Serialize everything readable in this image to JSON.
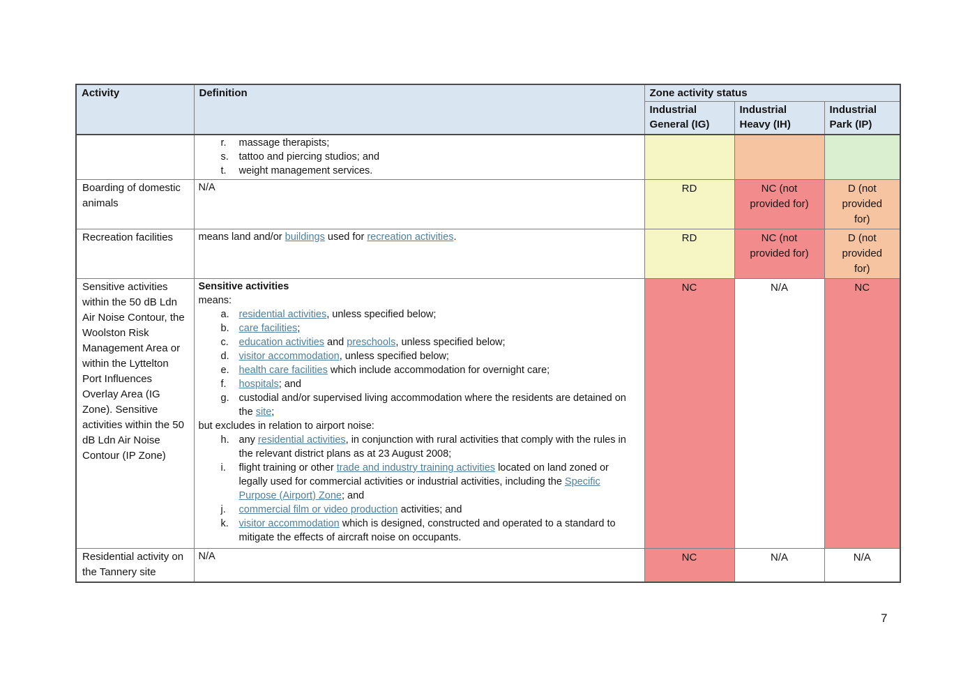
{
  "page_number": "7",
  "colors": {
    "header_bg": "#d9e6f2",
    "link": "#4e7f9e",
    "status": {
      "yellow": "#f6f6c5",
      "peach": "#f7c4a1",
      "green": "#d9efcf",
      "red": "#f28b8b",
      "white": "#ffffff"
    }
  },
  "table": {
    "header": {
      "activity": "Activity",
      "definition": "Definition",
      "zone_group": "Zone activity status",
      "zones": [
        {
          "label": "Industrial General (IG)"
        },
        {
          "label": "Industrial Heavy (IH)"
        },
        {
          "label": "Industrial Park (IP)"
        }
      ]
    },
    "rows": [
      {
        "activity": "",
        "definition": {
          "blocks": [
            {
              "type": "li",
              "marker": "r.",
              "segments": [
                {
                  "t": "massage therapists;"
                }
              ]
            },
            {
              "type": "li",
              "marker": "s.",
              "segments": [
                {
                  "t": "tattoo and piercing studios; and"
                }
              ]
            },
            {
              "type": "li",
              "marker": "t.",
              "segments": [
                {
                  "t": "weight management services."
                }
              ]
            }
          ]
        },
        "statuses": [
          {
            "text": "",
            "bg": "yellow"
          },
          {
            "text": "",
            "bg": "peach"
          },
          {
            "text": "",
            "bg": "green"
          }
        ]
      },
      {
        "activity": "Boarding of domestic animals",
        "definition": {
          "blocks": [
            {
              "type": "p",
              "segments": [
                {
                  "t": "N/A"
                }
              ]
            }
          ]
        },
        "statuses": [
          {
            "text": "RD",
            "bg": "yellow"
          },
          {
            "text": "NC (not provided for)",
            "bg": "red"
          },
          {
            "text": "D (not provided for)",
            "bg": "peach"
          }
        ]
      },
      {
        "activity": "Recreation facilities",
        "definition": {
          "blocks": [
            {
              "type": "p",
              "segments": [
                {
                  "t": "means land and/or "
                },
                {
                  "t": "buildings",
                  "link": true
                },
                {
                  "t": " used for "
                },
                {
                  "t": "recreation activities",
                  "link": true
                },
                {
                  "t": "."
                }
              ]
            }
          ]
        },
        "statuses": [
          {
            "text": "RD",
            "bg": "yellow"
          },
          {
            "text": "NC (not provided for)",
            "bg": "red"
          },
          {
            "text": "D (not provided for)",
            "bg": "peach"
          }
        ]
      },
      {
        "activity": "Sensitive activities within the 50 dB Ldn Air Noise Contour, the Woolston Risk Management Area or within the Lyttelton Port Influences Overlay Area (IG Zone). Sensitive activities within the 50 dB Ldn Air Noise Contour (IP Zone)",
        "definition": {
          "blocks": [
            {
              "type": "p",
              "bold": true,
              "segments": [
                {
                  "t": "Sensitive activities"
                }
              ]
            },
            {
              "type": "p",
              "segments": [
                {
                  "t": "means:"
                }
              ]
            },
            {
              "type": "li",
              "marker": "a.",
              "segments": [
                {
                  "t": "residential activities",
                  "link": true
                },
                {
                  "t": ", unless specified below;"
                }
              ]
            },
            {
              "type": "li",
              "marker": "b.",
              "segments": [
                {
                  "t": "care facilities",
                  "link": true
                },
                {
                  "t": ";"
                }
              ]
            },
            {
              "type": "li",
              "marker": "c.",
              "segments": [
                {
                  "t": "education activities",
                  "link": true
                },
                {
                  "t": " and "
                },
                {
                  "t": "preschools",
                  "link": true
                },
                {
                  "t": ", unless specified below;"
                }
              ]
            },
            {
              "type": "li",
              "marker": "d.",
              "segments": [
                {
                  "t": "visitor accommodation",
                  "link": true
                },
                {
                  "t": ", unless specified below;"
                }
              ]
            },
            {
              "type": "li",
              "marker": "e.",
              "segments": [
                {
                  "t": "health care facilities",
                  "link": true
                },
                {
                  "t": " which include accommodation for overnight care;"
                }
              ]
            },
            {
              "type": "li",
              "marker": "f.",
              "segments": [
                {
                  "t": "hospitals",
                  "link": true
                },
                {
                  "t": "; and"
                }
              ]
            },
            {
              "type": "li",
              "marker": "g.",
              "segments": [
                {
                  "t": "custodial and/or supervised living accommodation where the residents are detained on the "
                },
                {
                  "t": "site",
                  "link": true
                },
                {
                  "t": ";"
                }
              ]
            },
            {
              "type": "p",
              "segments": [
                {
                  "t": "but excludes in relation to airport noise:"
                }
              ]
            },
            {
              "type": "li",
              "marker": "h.",
              "segments": [
                {
                  "t": "any "
                },
                {
                  "t": "residential activities",
                  "link": true
                },
                {
                  "t": ", in conjunction with rural activities that comply with the rules in the relevant district plans as at 23 August 2008;"
                }
              ]
            },
            {
              "type": "li",
              "marker": "i.",
              "segments": [
                {
                  "t": "flight training or other "
                },
                {
                  "t": "trade and industry training activities",
                  "link": true
                },
                {
                  "t": " located on land zoned or legally used for commercial activities or industrial activities, including the "
                },
                {
                  "t": "Specific Purpose (Airport) Zone",
                  "link": true
                },
                {
                  "t": "; and"
                }
              ]
            },
            {
              "type": "li",
              "marker": "j.",
              "segments": [
                {
                  "t": "commercial film or video production",
                  "link": true
                },
                {
                  "t": " activities; and"
                }
              ]
            },
            {
              "type": "li",
              "marker": "k.",
              "segments": [
                {
                  "t": "visitor accommodation",
                  "link": true
                },
                {
                  "t": " which is designed, constructed and operated to a standard to mitigate the effects of aircraft noise on occupants."
                }
              ]
            }
          ]
        },
        "statuses": [
          {
            "text": "NC",
            "bg": "red"
          },
          {
            "text": "N/A",
            "bg": "white"
          },
          {
            "text": "NC",
            "bg": "red"
          }
        ]
      },
      {
        "activity": "Residential activity on the Tannery site",
        "definition": {
          "blocks": [
            {
              "type": "p",
              "segments": [
                {
                  "t": "N/A"
                }
              ]
            }
          ]
        },
        "statuses": [
          {
            "text": "NC",
            "bg": "red"
          },
          {
            "text": "N/A",
            "bg": "white"
          },
          {
            "text": "N/A",
            "bg": "white"
          }
        ]
      }
    ]
  }
}
